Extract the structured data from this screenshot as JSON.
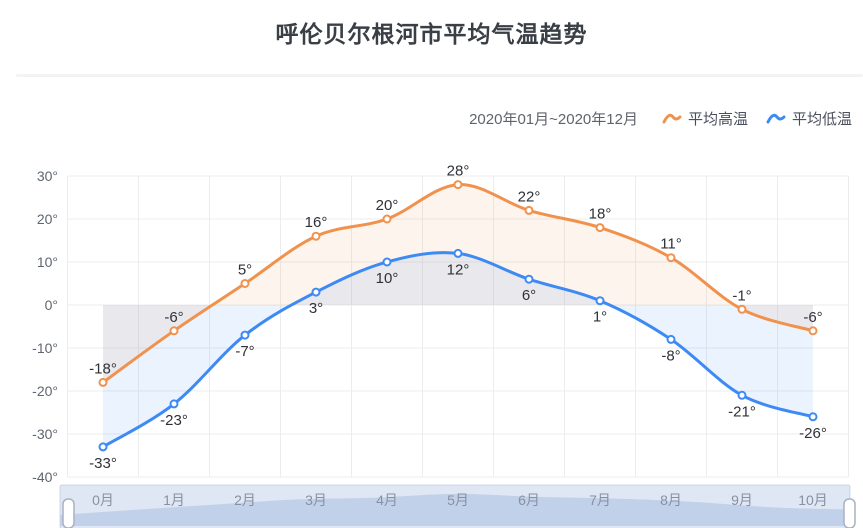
{
  "header": {
    "title": "呼伦贝尔根河市平均气温趋势"
  },
  "toolbar": {
    "date_range": "2020年01月~2020年12月",
    "legend": [
      {
        "label": "平均高温",
        "color": "#f0924d"
      },
      {
        "label": "平均低温",
        "color": "#3d8af4"
      }
    ]
  },
  "chart_data": {
    "type": "line",
    "title": "呼伦贝尔根河市平均气温趋势",
    "subtitle": "2020年01月~2020年12月",
    "categories": [
      "0月",
      "1月",
      "2月",
      "3月",
      "4月",
      "5月",
      "6月",
      "7月",
      "8月",
      "9月",
      "10月"
    ],
    "series": [
      {
        "name": "平均高温",
        "color": "#f0924d",
        "values": [
          -18,
          -6,
          5,
          16,
          20,
          28,
          22,
          18,
          11,
          -1,
          -6
        ],
        "label_position": "top",
        "area_opacity": 0.1
      },
      {
        "name": "平均低温",
        "color": "#3d8af4",
        "values": [
          -33,
          -23,
          -7,
          3,
          10,
          12,
          6,
          1,
          -8,
          -21,
          -26
        ],
        "label_position": "bottom",
        "area_opacity": 0.1
      }
    ],
    "unit": "°",
    "xlabel": "",
    "ylabel": "",
    "ylim": [
      -40,
      30
    ],
    "ytick_step": 10,
    "grid": true,
    "smooth": true,
    "area_origin": 0,
    "legend_position": "top-right",
    "datazoom": {
      "visible": true,
      "selected_range": "full"
    }
  },
  "colors": {
    "grid_line": "#ececec",
    "axis_label": "#5f6670",
    "data_label": "#2e3238",
    "slider_bg": "#f1f4fa",
    "slider_border": "#d3dbe8",
    "slider_shadow": "#cdd9ee",
    "slider_month_label": "#8791a3"
  }
}
